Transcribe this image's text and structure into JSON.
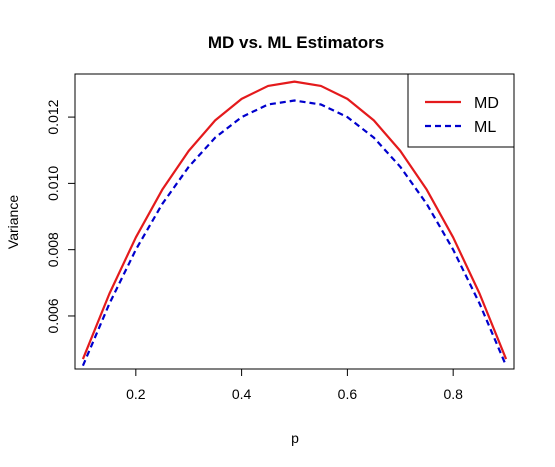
{
  "chart_data": {
    "type": "line",
    "title": "MD vs. ML Estimators",
    "xlabel": "p",
    "ylabel": "Variance",
    "xlim": [
      0.085,
      0.915
    ],
    "ylim": [
      0.0044,
      0.0133
    ],
    "x_ticks": [
      0.2,
      0.4,
      0.6,
      0.8
    ],
    "x_tick_labels": [
      "0.2",
      "0.4",
      "0.6",
      "0.8"
    ],
    "y_ticks": [
      0.006,
      0.008,
      0.01,
      0.012
    ],
    "y_tick_labels": [
      "0.006",
      "0.008",
      "0.010",
      "0.012"
    ],
    "grid": false,
    "legend": "top-right",
    "x": [
      0.1,
      0.15,
      0.2,
      0.25,
      0.3,
      0.35,
      0.4,
      0.45,
      0.5,
      0.55,
      0.6,
      0.65,
      0.7,
      0.75,
      0.8,
      0.85,
      0.9
    ],
    "series": [
      {
        "name": "MD",
        "color": "#e41a1c",
        "dash": "solid",
        "values": [
          0.0047,
          0.00667,
          0.00837,
          0.00981,
          0.01098,
          0.0119,
          0.01255,
          0.01294,
          0.01307,
          0.01294,
          0.01255,
          0.0119,
          0.01098,
          0.00981,
          0.00837,
          0.00667,
          0.0047
        ]
      },
      {
        "name": "ML",
        "color": "#0000cd",
        "dash": "dashed",
        "values": [
          0.0045,
          0.00637,
          0.008,
          0.00938,
          0.0105,
          0.01138,
          0.012,
          0.01238,
          0.0125,
          0.01238,
          0.012,
          0.01138,
          0.0105,
          0.00938,
          0.008,
          0.00637,
          0.0045
        ]
      }
    ]
  }
}
